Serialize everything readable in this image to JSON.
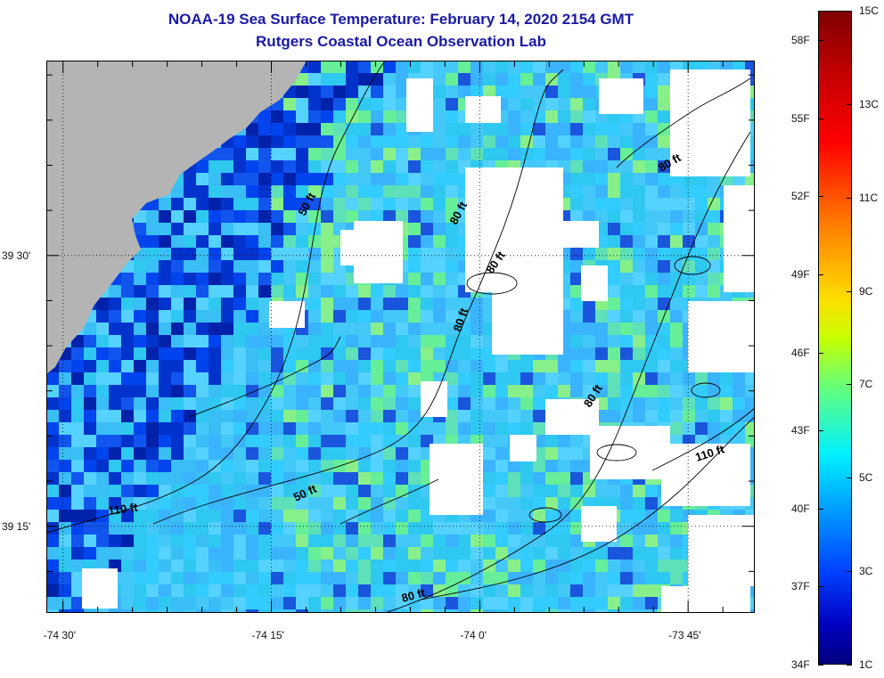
{
  "header": {
    "title": "NOAA-19 Sea Surface Temperature:  February 14, 2020 2154 GMT",
    "subtitle": "Rutgers Coastal Ocean Observation Lab"
  },
  "map": {
    "x_ticks": [
      {
        "value": -74.5,
        "label": "-74 30'"
      },
      {
        "value": -74.25,
        "label": "-74 15'"
      },
      {
        "value": -74.0,
        "label": "-74 0'"
      },
      {
        "value": -73.75,
        "label": "-73 45'"
      }
    ],
    "y_ticks": [
      {
        "value": 39.5,
        "label": "39 30'"
      },
      {
        "value": 39.25,
        "label": "39 15'"
      }
    ],
    "x_range": [
      -74.52,
      -73.67
    ],
    "y_range": [
      39.17,
      39.68
    ],
    "contour_labels": [
      "50 ft",
      "80 ft",
      "80 ft",
      "80 ft",
      "80 ft",
      "110 ft",
      "110 ft",
      "50 ft",
      "80 ft",
      "80 ft"
    ],
    "colors": {
      "land": "#b4b4b4",
      "cloud": "#ffffff",
      "water_cold": "#0033cc",
      "water_mid": "#33bbff",
      "water_warm": "#66ee99"
    }
  },
  "colorbar": {
    "celsius_labels": [
      "15C",
      "13C",
      "11C",
      "9C",
      "7C",
      "5C",
      "3C",
      "1C"
    ],
    "fahrenheit_labels": [
      "58F",
      "55F",
      "52F",
      "49F",
      "46F",
      "43F",
      "40F",
      "37F",
      "34F"
    ],
    "range_c": [
      1,
      15
    ]
  }
}
